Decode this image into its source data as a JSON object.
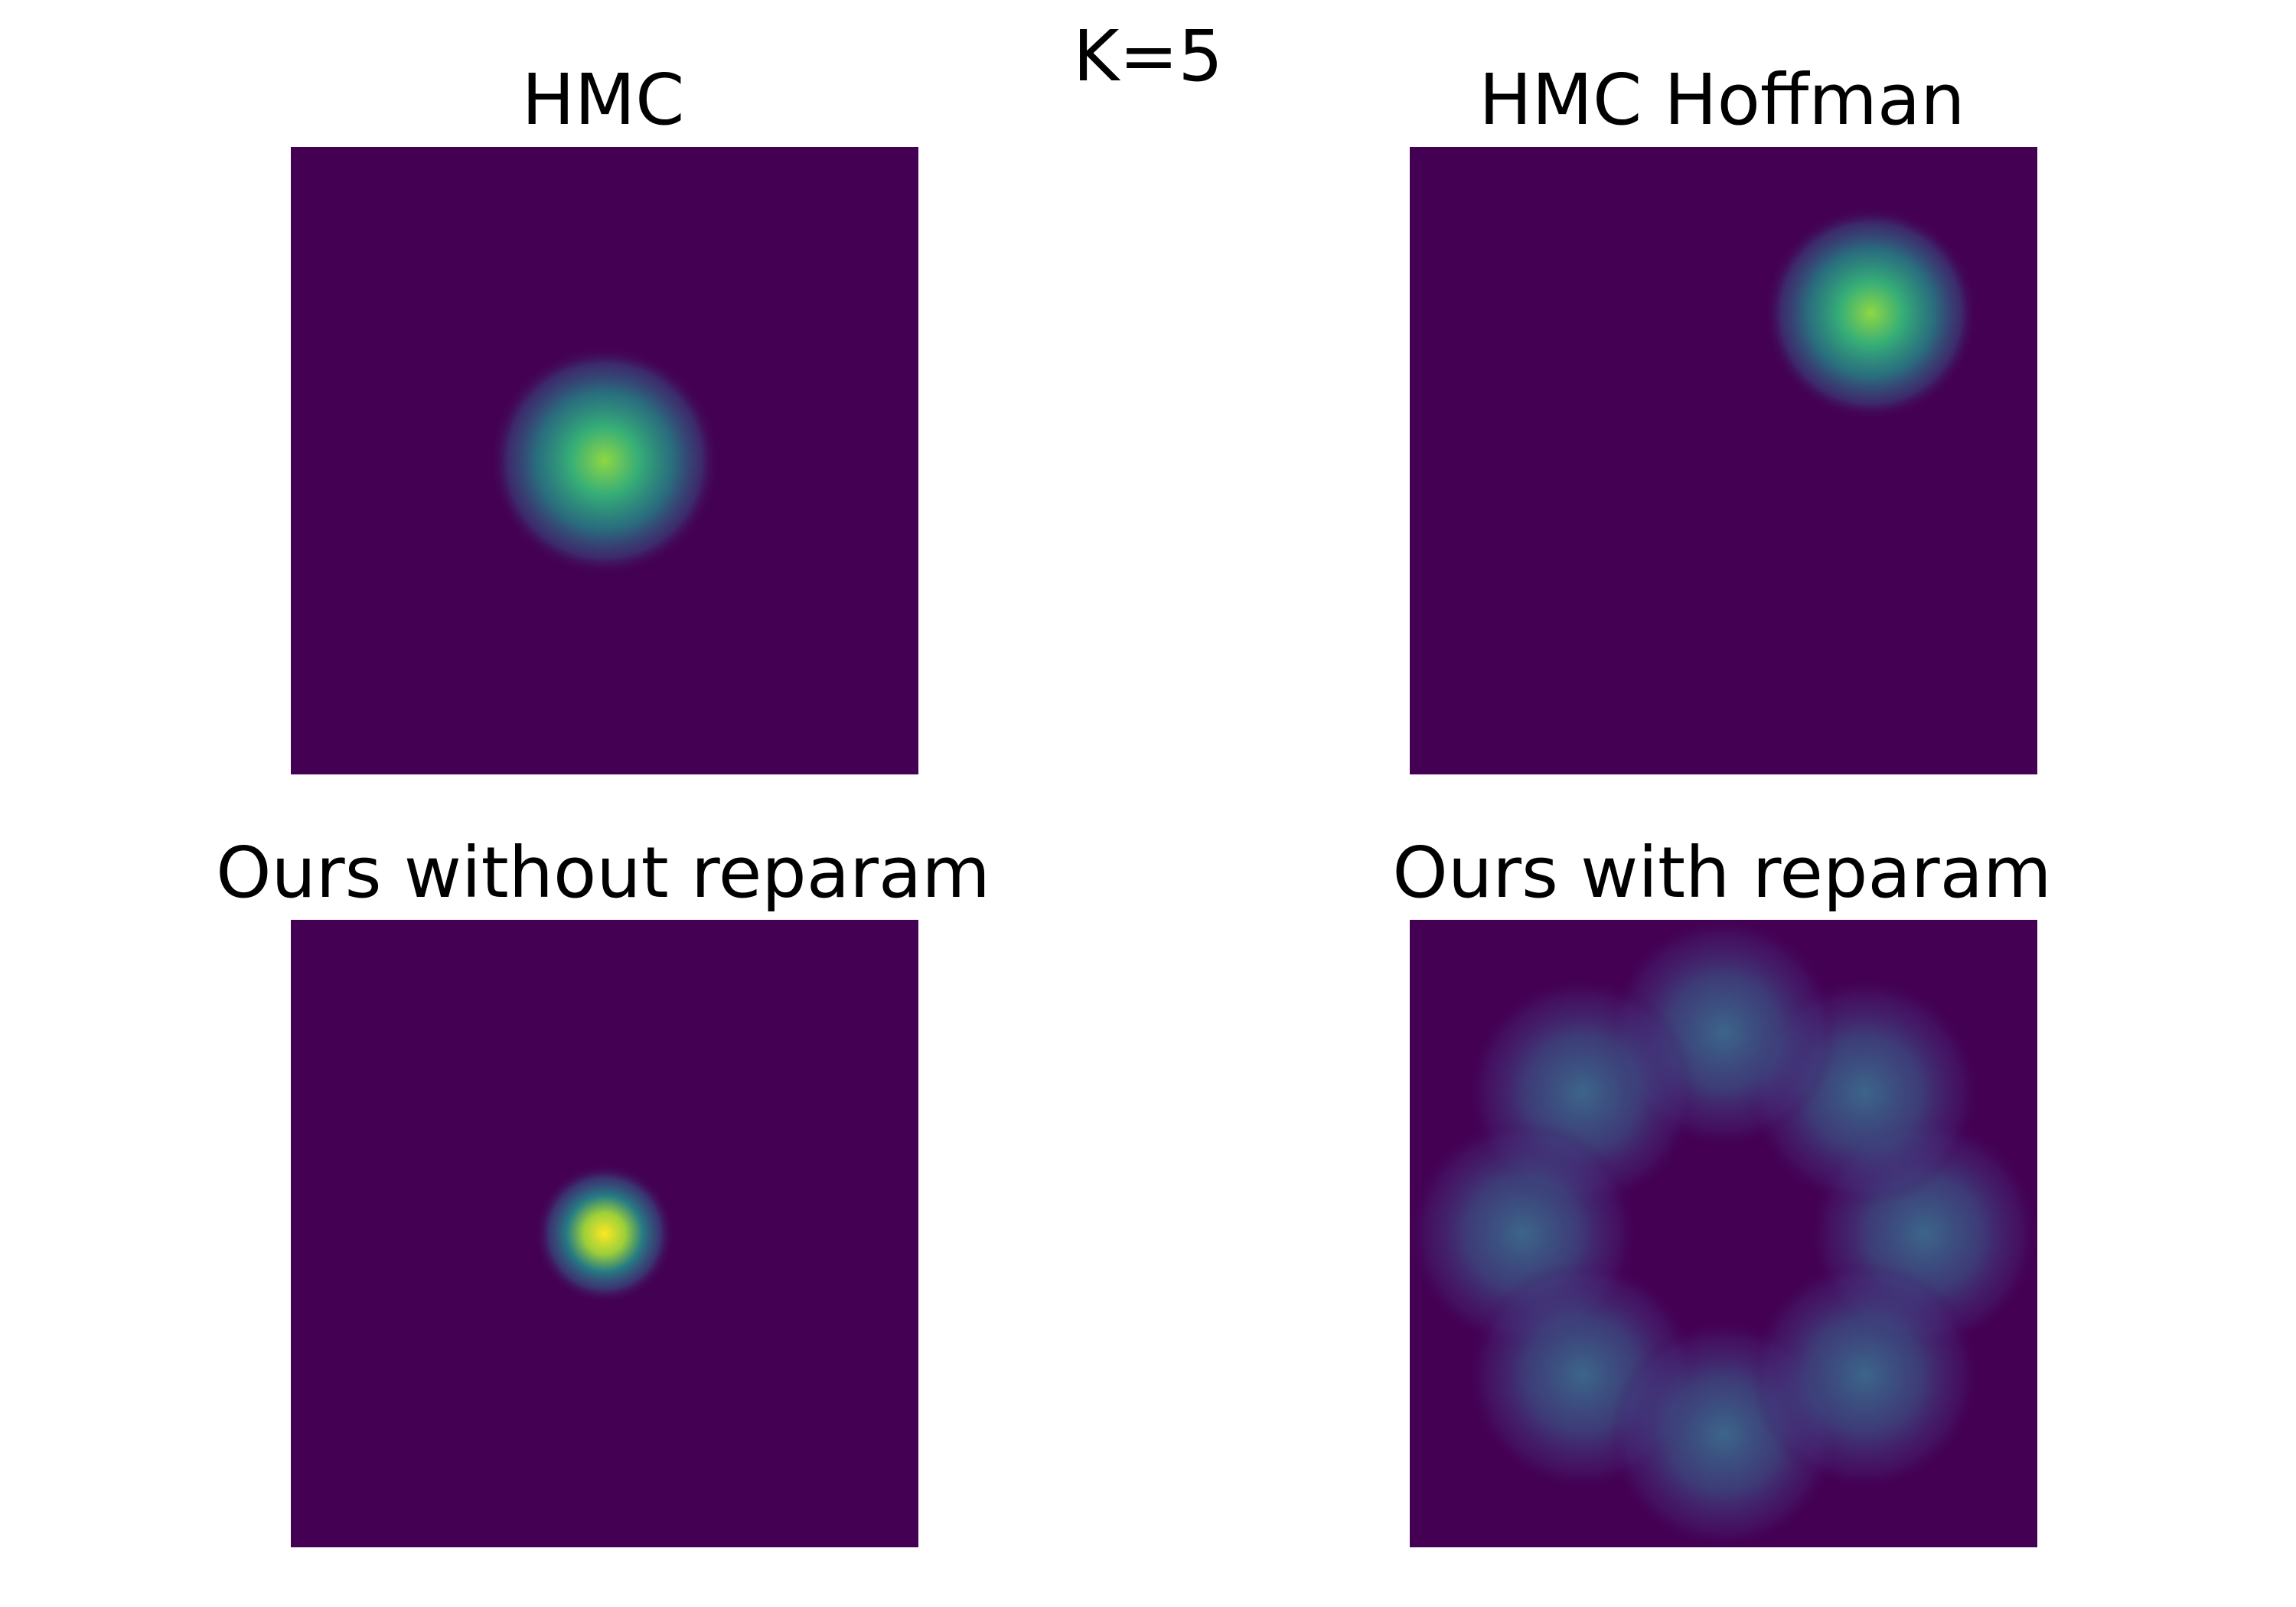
{
  "figure": {
    "suptitle": "K=5",
    "colors": {
      "background": "#440154",
      "mid": "#3b6b8c",
      "bright": "#21918c",
      "peak": "#fde725"
    }
  },
  "chart_data": [
    {
      "type": "heatmap",
      "title": "HMC",
      "axes_visible": false,
      "grid": false,
      "xlim": [
        -1,
        1
      ],
      "ylim": [
        -1,
        1
      ],
      "modes": [
        {
          "x": 0.0,
          "y": 0.0,
          "sigma": 0.14,
          "peak": 0.75
        }
      ]
    },
    {
      "type": "heatmap",
      "title": "HMC Hoffman",
      "axes_visible": false,
      "grid": false,
      "xlim": [
        -1,
        1
      ],
      "ylim": [
        -1,
        1
      ],
      "modes": [
        {
          "x": 0.47,
          "y": 0.47,
          "sigma": 0.13,
          "peak": 0.8
        }
      ]
    },
    {
      "type": "heatmap",
      "title": "Ours without reparam",
      "axes_visible": false,
      "grid": false,
      "xlim": [
        -1,
        1
      ],
      "ylim": [
        -1,
        1
      ],
      "modes": [
        {
          "x": 0.0,
          "y": 0.0,
          "sigma": 0.085,
          "peak": 1.0
        }
      ]
    },
    {
      "type": "heatmap",
      "title": "Ours with reparam",
      "axes_visible": false,
      "grid": false,
      "xlim": [
        -1,
        1
      ],
      "ylim": [
        -1,
        1
      ],
      "modes": [
        {
          "x": 0.64,
          "y": 0.0,
          "sigma": 0.14,
          "peak": 0.35
        },
        {
          "x": 0.45,
          "y": 0.45,
          "sigma": 0.14,
          "peak": 0.35
        },
        {
          "x": 0.0,
          "y": 0.64,
          "sigma": 0.14,
          "peak": 0.35
        },
        {
          "x": -0.45,
          "y": 0.45,
          "sigma": 0.14,
          "peak": 0.35
        },
        {
          "x": -0.64,
          "y": 0.0,
          "sigma": 0.14,
          "peak": 0.35
        },
        {
          "x": -0.45,
          "y": -0.45,
          "sigma": 0.14,
          "peak": 0.35
        },
        {
          "x": 0.0,
          "y": -0.64,
          "sigma": 0.14,
          "peak": 0.35
        },
        {
          "x": 0.45,
          "y": -0.45,
          "sigma": 0.14,
          "peak": 0.35
        }
      ]
    }
  ]
}
